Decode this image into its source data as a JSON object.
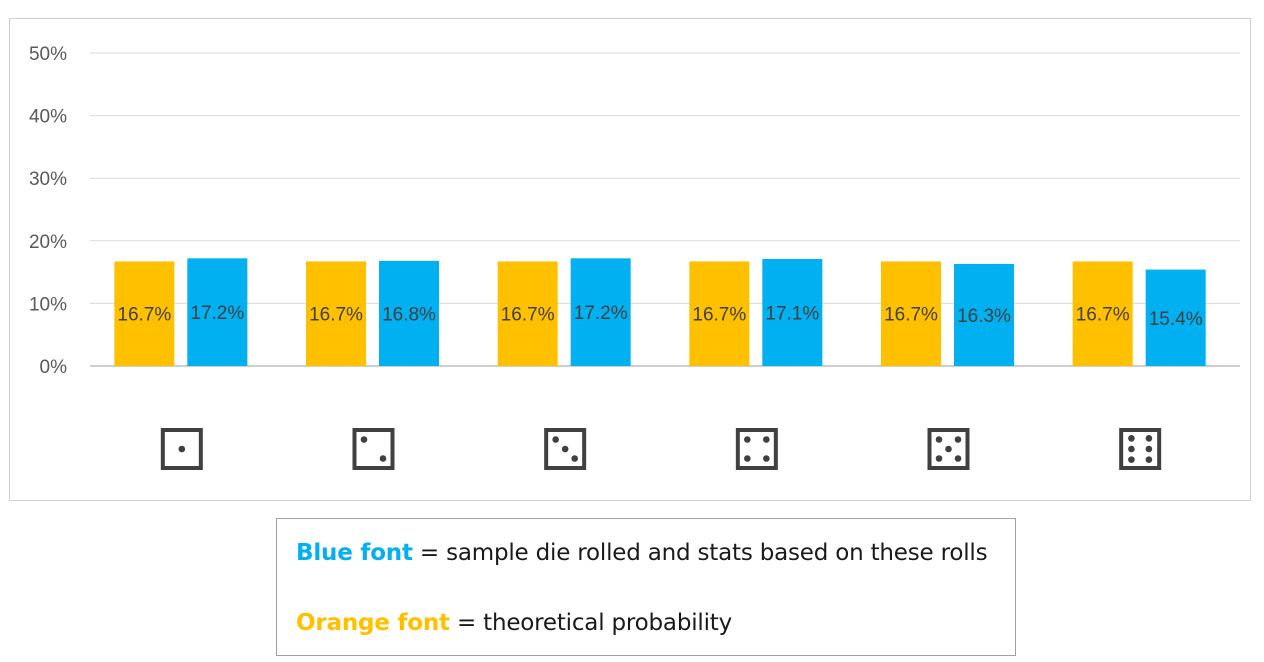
{
  "chart_data": {
    "type": "bar",
    "categories": [
      "die-face-1",
      "die-face-2",
      "die-face-3",
      "die-face-4",
      "die-face-5",
      "die-face-6"
    ],
    "category_pips": [
      1,
      2,
      3,
      4,
      5,
      6
    ],
    "series": [
      {
        "name": "Orange font",
        "color": "#ffc000",
        "values": [
          16.7,
          16.7,
          16.7,
          16.7,
          16.7,
          16.7
        ],
        "labels": [
          "16.7%",
          "16.7%",
          "16.7%",
          "16.7%",
          "16.7%",
          "16.7%"
        ]
      },
      {
        "name": "Blue font",
        "color": "#00b0f0",
        "values": [
          17.2,
          16.8,
          17.2,
          17.1,
          16.3,
          15.4
        ],
        "labels": [
          "17.2%",
          "16.8%",
          "17.2%",
          "17.1%",
          "16.3%",
          "15.4%"
        ]
      }
    ],
    "ylim": [
      0,
      50
    ],
    "yticks": [
      "0%",
      "10%",
      "20%",
      "30%",
      "40%",
      "50%"
    ],
    "grid": true,
    "colors": {
      "grid": "#d9d9d9",
      "axis": "#bfbfbf",
      "tick_text": "#595959",
      "label_text": "#404040",
      "die": "#404040"
    }
  },
  "legend": {
    "blue": {
      "key": "Blue font",
      "text": " = sample die rolled and stats based on these rolls",
      "color": "#00b0f0"
    },
    "orange": {
      "key": "Orange font",
      "text": " = theoretical probability",
      "color": "#ffc000"
    }
  }
}
